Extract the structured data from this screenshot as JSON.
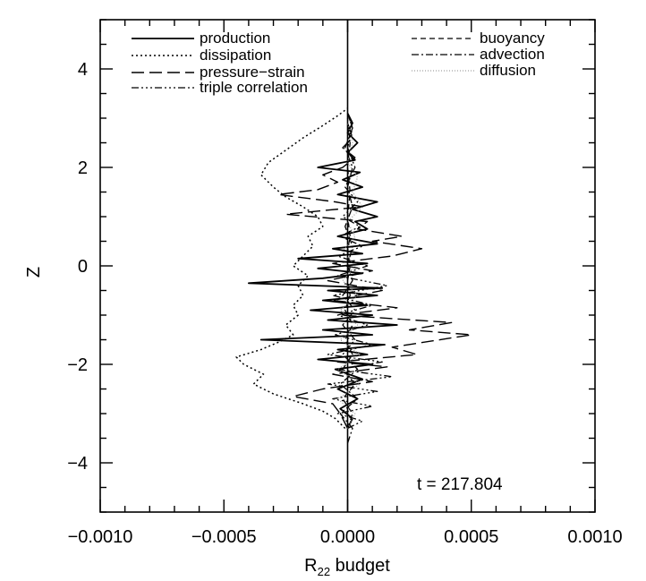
{
  "chart_data": {
    "type": "line",
    "title": "",
    "xlabel_main": "R",
    "xlabel_sub": "22",
    "xlabel_rest": " budget",
    "ylabel": "Z",
    "xlim": [
      -0.001,
      0.001
    ],
    "ylim": [
      -5,
      5
    ],
    "xticks": [
      -0.001,
      -0.0005,
      0,
      0.0005,
      0.001
    ],
    "xtick_labels": [
      "−0.0010",
      "−0.0005",
      "0.0000",
      "0.0005",
      "0.0010"
    ],
    "yticks": [
      -4,
      -2,
      0,
      2,
      4
    ],
    "ytick_labels": [
      "−4",
      "−2",
      "0",
      "2",
      "4"
    ],
    "annotation": "t  =  217.804",
    "grid": false,
    "legend_left": [
      "production",
      "dissipation",
      "pressure−strain",
      "triple correlation"
    ],
    "legend_right": [
      "buoyancy",
      "advection",
      "diffusion"
    ],
    "series": [
      {
        "name": "production",
        "dash": "",
        "width": 1.8,
        "color": "#000000",
        "points": [
          [
            0,
            -3.3
          ],
          [
            2e-05,
            -3.1
          ],
          [
            -3e-05,
            -2.9
          ],
          [
            4e-05,
            -2.7
          ],
          [
            -4e-05,
            -2.5
          ],
          [
            6e-05,
            -2.3
          ],
          [
            -5e-05,
            -2.1
          ],
          [
            0.0001,
            -2.0
          ],
          [
            -0.00012,
            -1.9
          ],
          [
            8e-05,
            -1.8
          ],
          [
            -4e-05,
            -1.7
          ],
          [
            0.00015,
            -1.6
          ],
          [
            -0.00035,
            -1.5
          ],
          [
            0.0001,
            -1.4
          ],
          [
            -0.0001,
            -1.3
          ],
          [
            0.0002,
            -1.2
          ],
          [
            -8e-05,
            -1.1
          ],
          [
            0.0001,
            -1.0
          ],
          [
            -0.00015,
            -0.9
          ],
          [
            8e-05,
            -0.8
          ],
          [
            -0.0001,
            -0.7
          ],
          [
            0.00012,
            -0.6
          ],
          [
            -8e-05,
            -0.5
          ],
          [
            0.00014,
            -0.45
          ],
          [
            -0.0004,
            -0.35
          ],
          [
            -0.0001,
            -0.25
          ],
          [
            6e-05,
            -0.15
          ],
          [
            -0.00012,
            -0.05
          ],
          [
            8e-05,
            0.05
          ],
          [
            -0.0002,
            0.15
          ],
          [
            6e-05,
            0.25
          ],
          [
            -6e-05,
            0.35
          ],
          [
            0.00012,
            0.45
          ],
          [
            -4e-05,
            0.6
          ],
          [
            8e-05,
            0.75
          ],
          [
            3e-05,
            0.9
          ],
          [
            0.00012,
            1.0
          ],
          [
            2e-05,
            1.15
          ],
          [
            0.00012,
            1.3
          ],
          [
            -4e-05,
            1.45
          ],
          [
            6e-05,
            1.6
          ],
          [
            -2e-05,
            1.75
          ],
          [
            5e-05,
            1.9
          ],
          [
            -0.00012,
            2.0
          ],
          [
            3e-05,
            2.15
          ],
          [
            0,
            2.3
          ],
          [
            4e-05,
            2.5
          ],
          [
            0,
            2.7
          ],
          [
            2e-05,
            2.9
          ],
          [
            0,
            3.1
          ]
        ]
      },
      {
        "name": "dissipation",
        "dash": "2,3",
        "width": 1.5,
        "color": "#000000",
        "points": [
          [
            -1e-05,
            -3.3
          ],
          [
            -5e-05,
            -3.1
          ],
          [
            -0.0001,
            -2.95
          ],
          [
            -0.00018,
            -2.8
          ],
          [
            -0.0003,
            -2.6
          ],
          [
            -0.00038,
            -2.4
          ],
          [
            -0.00034,
            -2.2
          ],
          [
            -0.00042,
            -2.0
          ],
          [
            -0.00045,
            -1.85
          ],
          [
            -0.00035,
            -1.7
          ],
          [
            -0.00028,
            -1.55
          ],
          [
            -0.00022,
            -1.4
          ],
          [
            -0.00025,
            -1.2
          ],
          [
            -0.0002,
            -1.0
          ],
          [
            -0.00022,
            -0.8
          ],
          [
            -0.00018,
            -0.6
          ],
          [
            -0.0002,
            -0.4
          ],
          [
            -0.00016,
            -0.2
          ],
          [
            -0.00022,
            0.0
          ],
          [
            -0.00018,
            0.2
          ],
          [
            -0.00014,
            0.4
          ],
          [
            -0.00016,
            0.6
          ],
          [
            -0.0001,
            0.8
          ],
          [
            -0.00012,
            1.0
          ],
          [
            -0.00018,
            1.2
          ],
          [
            -0.00025,
            1.4
          ],
          [
            -0.0003,
            1.6
          ],
          [
            -0.00035,
            1.85
          ],
          [
            -0.00032,
            2.1
          ],
          [
            -0.00025,
            2.35
          ],
          [
            -0.00018,
            2.6
          ],
          [
            -0.0001,
            2.85
          ],
          [
            -4e-05,
            3.05
          ],
          [
            0,
            3.2
          ]
        ]
      },
      {
        "name": "pressure−strain",
        "dash": "14,6",
        "width": 1.4,
        "color": "#000000",
        "points": [
          [
            0,
            -3.3
          ],
          [
            -3e-05,
            -3.0
          ],
          [
            -6e-05,
            -2.8
          ],
          [
            -0.00022,
            -2.65
          ],
          [
            -0.0001,
            -2.5
          ],
          [
            0.0001,
            -2.35
          ],
          [
            -6e-05,
            -2.2
          ],
          [
            0.00016,
            -2.05
          ],
          [
            -4e-05,
            -1.95
          ],
          [
            0.00028,
            -1.8
          ],
          [
            0.00018,
            -1.65
          ],
          [
            0.0005,
            -1.4
          ],
          [
            0.00025,
            -1.3
          ],
          [
            0.00042,
            -1.15
          ],
          [
            -3e-05,
            -1.0
          ],
          [
            0.0002,
            -0.85
          ],
          [
            -6e-05,
            -0.7
          ],
          [
            0.00014,
            -0.5
          ],
          [
            -8e-05,
            -0.3
          ],
          [
            0.0001,
            -0.1
          ],
          [
            -6e-05,
            0.05
          ],
          [
            0.00018,
            0.2
          ],
          [
            0.0003,
            0.35
          ],
          [
            0.0001,
            0.5
          ],
          [
            0.00022,
            0.6
          ],
          [
            4e-05,
            0.75
          ],
          [
            8e-05,
            0.9
          ],
          [
            -0.00025,
            1.05
          ],
          [
            6e-05,
            1.2
          ],
          [
            -5e-05,
            1.3
          ],
          [
            -0.00028,
            1.45
          ],
          [
            -0.00012,
            1.55
          ],
          [
            -4e-05,
            1.7
          ],
          [
            -0.0001,
            1.85
          ],
          [
            -2e-05,
            2.0
          ],
          [
            3e-05,
            2.2
          ],
          [
            -2e-05,
            2.4
          ],
          [
            2e-05,
            2.6
          ],
          [
            0,
            2.9
          ]
        ]
      },
      {
        "name": "triple correlation",
        "dash": "8,3,2,3,2,3,2,3",
        "width": 1.3,
        "color": "#000000",
        "points": [
          [
            0,
            -3.3
          ],
          [
            6e-05,
            -3.15
          ],
          [
            -4e-05,
            -3.0
          ],
          [
            0.0001,
            -2.85
          ],
          [
            -6e-05,
            -2.7
          ],
          [
            0.00012,
            -2.55
          ],
          [
            -8e-05,
            -2.4
          ],
          [
            0.00018,
            -2.25
          ],
          [
            -4e-05,
            -2.1
          ],
          [
            0.00014,
            -1.95
          ],
          [
            -8e-05,
            -1.8
          ],
          [
            0.0001,
            -1.6
          ],
          [
            -5e-05,
            -1.4
          ],
          [
            8e-05,
            -1.2
          ],
          [
            -4e-05,
            -1.0
          ],
          [
            0.0001,
            -0.8
          ],
          [
            -6e-05,
            -0.6
          ],
          [
            0.00016,
            -0.4
          ],
          [
            -4e-05,
            -0.2
          ],
          [
            8e-05,
            0.0
          ],
          [
            -4e-05,
            0.2
          ],
          [
            6e-05,
            0.4
          ],
          [
            -3e-05,
            0.6
          ],
          [
            5e-05,
            0.8
          ],
          [
            -2e-05,
            1.0
          ],
          [
            4e-05,
            1.3
          ],
          [
            -1e-05,
            1.6
          ],
          [
            3e-05,
            2.0
          ],
          [
            0,
            2.4
          ],
          [
            2e-05,
            2.8
          ],
          [
            0,
            3.1
          ]
        ]
      },
      {
        "name": "buoyancy",
        "dash": "6,4",
        "width": 1.3,
        "color": "#000000",
        "points": [
          [
            0,
            -3.3
          ],
          [
            2e-05,
            -3.0
          ],
          [
            -2e-05,
            -2.7
          ],
          [
            3e-05,
            -2.4
          ],
          [
            -2e-05,
            -2.1
          ],
          [
            2e-05,
            -1.8
          ],
          [
            -1e-05,
            -1.5
          ],
          [
            2e-05,
            -1.2
          ],
          [
            -1e-05,
            -0.9
          ],
          [
            1e-05,
            -0.6
          ],
          [
            0,
            -0.3
          ],
          [
            1e-05,
            0.0
          ],
          [
            0,
            0.3
          ],
          [
            1e-05,
            0.6
          ],
          [
            0,
            1.0
          ],
          [
            1e-05,
            1.5
          ],
          [
            0,
            2.0
          ],
          [
            1e-05,
            2.5
          ],
          [
            0,
            3.0
          ]
        ]
      },
      {
        "name": "advection",
        "dash": "8,3,2,3",
        "width": 1.3,
        "color": "#000000",
        "points": [
          [
            0,
            -3.6
          ],
          [
            2e-05,
            -3.3
          ],
          [
            -3e-05,
            -3.0
          ],
          [
            4e-05,
            -2.7
          ],
          [
            -3e-05,
            -2.4
          ],
          [
            4e-05,
            -2.1
          ],
          [
            -2e-05,
            -1.8
          ],
          [
            3e-05,
            -1.5
          ],
          [
            -2e-05,
            -1.2
          ],
          [
            3e-05,
            -0.9
          ],
          [
            -2e-05,
            -0.6
          ],
          [
            2e-05,
            -0.3
          ],
          [
            0,
            0.0
          ],
          [
            2e-05,
            0.4
          ],
          [
            -1e-05,
            0.8
          ],
          [
            2e-05,
            1.2
          ],
          [
            0,
            1.6
          ],
          [
            2e-05,
            2.0
          ],
          [
            -1e-05,
            2.4
          ],
          [
            2e-05,
            2.8
          ],
          [
            0,
            3.1
          ]
        ]
      },
      {
        "name": "diffusion",
        "dash": "1,2",
        "width": 1.1,
        "color": "#8a8a8a",
        "points": [
          [
            0,
            -3.3
          ],
          [
            3e-05,
            -3.0
          ],
          [
            -4e-05,
            -2.7
          ],
          [
            5e-05,
            -2.4
          ],
          [
            -4e-05,
            -2.1
          ],
          [
            5e-05,
            -1.8
          ],
          [
            -3e-05,
            -1.5
          ],
          [
            4e-05,
            -1.2
          ],
          [
            -3e-05,
            -0.9
          ],
          [
            4e-05,
            -0.6
          ],
          [
            -2e-05,
            -0.3
          ],
          [
            3e-05,
            0.0
          ],
          [
            -2e-05,
            0.3
          ],
          [
            3e-05,
            0.6
          ],
          [
            0,
            0.9
          ],
          [
            6e-05,
            1.2
          ],
          [
            2e-05,
            1.5
          ],
          [
            4e-05,
            1.8
          ],
          [
            0,
            2.1
          ],
          [
            2e-05,
            2.5
          ],
          [
            0,
            2.9
          ]
        ]
      }
    ]
  }
}
